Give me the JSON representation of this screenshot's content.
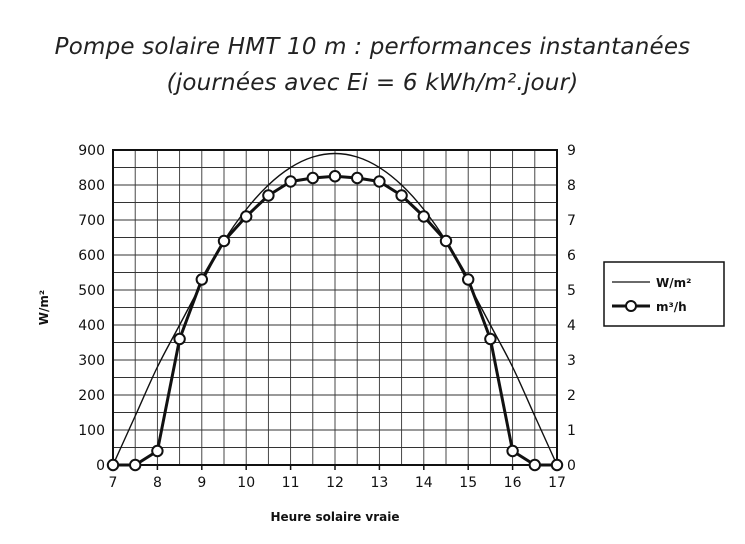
{
  "chart_data": {
    "type": "line",
    "title": "Pompe solaire HMT 10 m : performances instantanées",
    "subtitle": "(journées avec Ei = 6 kWh/m².jour)",
    "xlabel": "Heure solaire vraie",
    "ylabel_left": "W/m²",
    "xlim": [
      7,
      17
    ],
    "ylim_left": [
      0,
      900
    ],
    "ylim_right": [
      0,
      9
    ],
    "x_ticks": [
      "7",
      "8",
      "9",
      "10",
      "11",
      "12",
      "13",
      "14",
      "15",
      "16",
      "17"
    ],
    "y_ticks_left": [
      "0",
      "100",
      "200",
      "300",
      "400",
      "500",
      "600",
      "700",
      "800",
      "900"
    ],
    "y_ticks_right": [
      "0",
      "1",
      "2",
      "3",
      "4",
      "5",
      "6",
      "7",
      "8",
      "9"
    ],
    "grid": true,
    "legend_position": "right",
    "series": [
      {
        "name": "W/m²",
        "axis": "left",
        "marker": "none",
        "x": [
          7,
          7.5,
          8,
          8.5,
          9,
          9.5,
          10,
          10.5,
          11,
          11.5,
          12,
          12.5,
          13,
          13.5,
          14,
          14.5,
          15,
          15.5,
          16,
          16.5,
          17
        ],
        "values": [
          0,
          140,
          280,
          400,
          520,
          640,
          730,
          800,
          850,
          880,
          890,
          880,
          850,
          800,
          730,
          640,
          520,
          400,
          280,
          140,
          0
        ]
      },
      {
        "name": "m³/h",
        "axis": "right",
        "marker": "circle",
        "x": [
          7,
          7.5,
          8,
          8.5,
          9,
          9.5,
          10,
          10.5,
          11,
          11.5,
          12,
          12.5,
          13,
          13.5,
          14,
          14.5,
          15,
          15.5,
          16,
          16.5,
          17
        ],
        "values": [
          0,
          0,
          0.4,
          3.6,
          5.3,
          6.4,
          7.1,
          7.7,
          8.1,
          8.2,
          8.25,
          8.2,
          8.1,
          7.7,
          7.1,
          6.4,
          5.3,
          3.6,
          0.4,
          0,
          0
        ]
      }
    ]
  }
}
